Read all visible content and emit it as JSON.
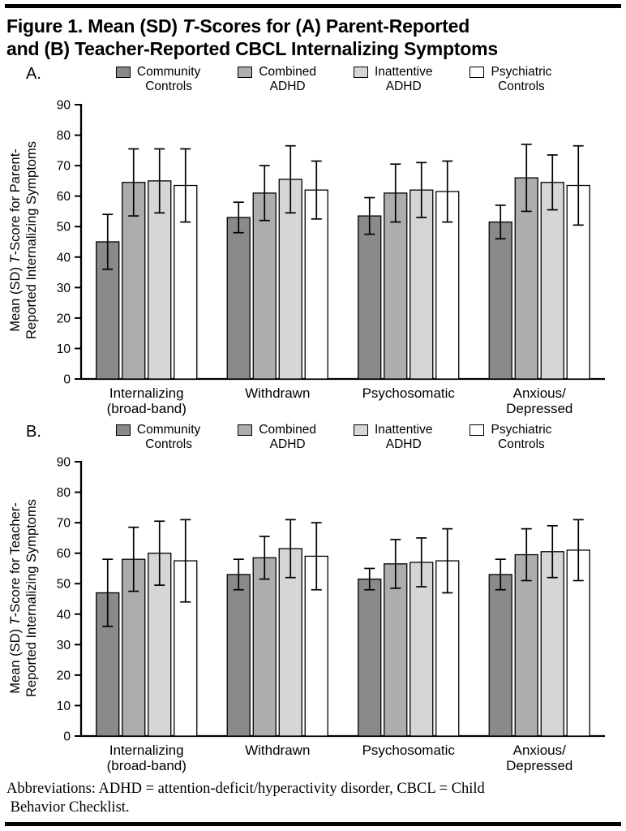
{
  "figure": {
    "title_rich": [
      {
        "text": "Figure 1. Mean (SD) ",
        "italic": false
      },
      {
        "text": "T",
        "italic": true
      },
      {
        "text": "-Scores for (A) Parent-Reported\nand (B) Teacher-Reported CBCL Internalizing Symptoms",
        "italic": false
      }
    ],
    "footnote": "Abbreviations: ADHD = attention-deficit/hyperactivity disorder, CBCL = Child\n Behavior Checklist."
  },
  "legend": {
    "items": [
      {
        "label": "Community\nControls",
        "color": "#8a8a8a"
      },
      {
        "label": "Combined\nADHD",
        "color": "#adadad"
      },
      {
        "label": "Inattentive\nADHD",
        "color": "#d6d6d6"
      },
      {
        "label": "Psychiatric\nControls",
        "color": "#ffffff"
      }
    ]
  },
  "chart_data": [
    {
      "type": "bar",
      "panel_label": "A.",
      "ylabel_rich": [
        {
          "text": "Mean (SD) ",
          "italic": false
        },
        {
          "text": "T",
          "italic": true
        },
        {
          "text": "-Score for Parent-\nReported Internalizing Symptoms",
          "italic": false
        }
      ],
      "ylim": [
        0,
        90
      ],
      "yticks": [
        90,
        80,
        70,
        60,
        50,
        40,
        30,
        20,
        10,
        0
      ],
      "grid": false,
      "legend_position": "top",
      "categories": [
        "Internalizing\n(broad-band)",
        "Withdrawn",
        "Psychosomatic",
        "Anxious/\nDepressed"
      ],
      "series": [
        {
          "name": "Community Controls",
          "color": "#8a8a8a",
          "values": [
            45,
            53,
            53.5,
            51.5
          ],
          "sd": [
            9,
            5,
            6,
            5.5
          ]
        },
        {
          "name": "Combined ADHD",
          "color": "#adadad",
          "values": [
            64.5,
            61,
            61,
            66
          ],
          "sd": [
            11,
            9,
            9.5,
            11
          ]
        },
        {
          "name": "Inattentive ADHD",
          "color": "#d6d6d6",
          "values": [
            65,
            65.5,
            62,
            64.5
          ],
          "sd": [
            10.5,
            11,
            9,
            9
          ]
        },
        {
          "name": "Psychiatric Controls",
          "color": "#ffffff",
          "values": [
            63.5,
            62,
            61.5,
            63.5
          ],
          "sd": [
            12,
            9.5,
            10,
            13
          ]
        }
      ]
    },
    {
      "type": "bar",
      "panel_label": "B.",
      "ylabel_rich": [
        {
          "text": "Mean (SD) ",
          "italic": false
        },
        {
          "text": "T",
          "italic": true
        },
        {
          "text": "-Score  for Teacher-\nReported Internalizing Symptoms",
          "italic": false
        }
      ],
      "ylim": [
        0,
        90
      ],
      "yticks": [
        90,
        80,
        70,
        60,
        50,
        40,
        30,
        20,
        10,
        0
      ],
      "grid": false,
      "legend_position": "top",
      "categories": [
        "Internalizing\n(broad-band)",
        "Withdrawn",
        "Psychosomatic",
        "Anxious/\nDepressed"
      ],
      "series": [
        {
          "name": "Community Controls",
          "color": "#8a8a8a",
          "values": [
            47,
            53,
            51.5,
            53
          ],
          "sd": [
            11,
            5,
            3.5,
            5
          ]
        },
        {
          "name": "Combined ADHD",
          "color": "#adadad",
          "values": [
            58,
            58.5,
            56.5,
            59.5
          ],
          "sd": [
            10.5,
            7,
            8,
            8.5
          ]
        },
        {
          "name": "Inattentive ADHD",
          "color": "#d6d6d6",
          "values": [
            60,
            61.5,
            57,
            60.5
          ],
          "sd": [
            10.5,
            9.5,
            8,
            8.5
          ]
        },
        {
          "name": "Psychiatric Controls",
          "color": "#ffffff",
          "values": [
            57.5,
            59,
            57.5,
            61
          ],
          "sd": [
            13.5,
            11,
            10.5,
            10
          ]
        }
      ]
    }
  ]
}
